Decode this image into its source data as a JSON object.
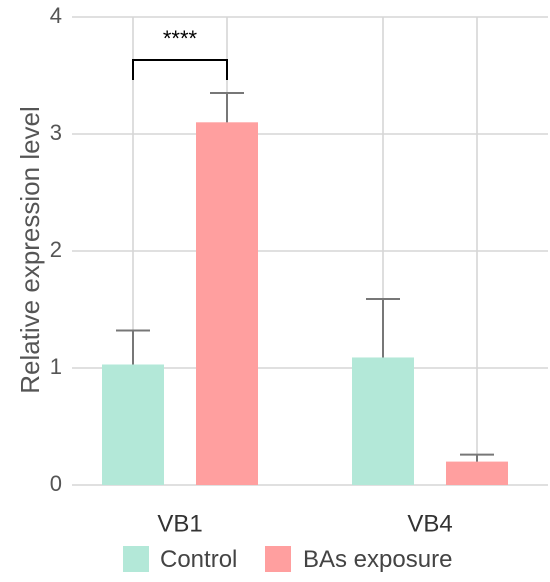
{
  "chart_data": {
    "type": "bar",
    "categories": [
      "VB1",
      "VB4"
    ],
    "series": [
      {
        "name": "Control",
        "values": [
          1.03,
          1.09
        ],
        "errors": [
          0.29,
          0.5
        ],
        "color": "#b3e8d8"
      },
      {
        "name": "BAs exposure",
        "values": [
          3.1,
          0.2
        ],
        "errors": [
          0.25,
          0.06
        ],
        "color": "#ff9f9f"
      }
    ],
    "title": "",
    "xlabel": "",
    "ylabel": "Relative expression level",
    "ylim": [
      0,
      4
    ],
    "yticks": [
      0,
      1,
      2,
      3,
      4
    ],
    "grid": true,
    "legend": {
      "position": "bottom",
      "entries": [
        "Control",
        "BAs exposure"
      ]
    },
    "annotations": [
      {
        "text": "****",
        "category": "VB1",
        "between": [
          "Control",
          "BAs exposure"
        ]
      }
    ]
  }
}
